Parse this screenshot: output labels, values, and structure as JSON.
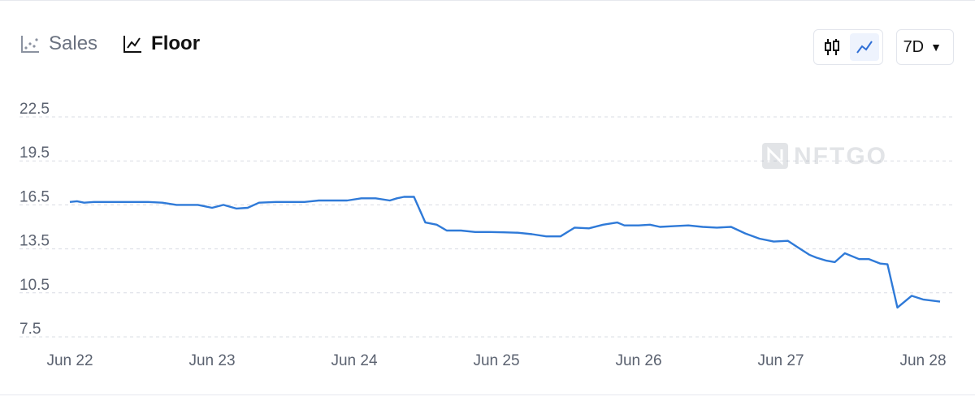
{
  "tabs": [
    {
      "label": "Sales",
      "icon": "scatter-icon",
      "active": false
    },
    {
      "label": "Floor",
      "icon": "line-chart-icon",
      "active": true
    }
  ],
  "controls": {
    "chart_type_options": [
      "candlestick-icon",
      "line-chart-icon"
    ],
    "active_chart_type": "line-chart-icon",
    "range_label": "7D"
  },
  "watermark": "NFTGO",
  "colors": {
    "line": "#2f7ad8",
    "grid": "#d9dce3",
    "accent_bg": "#eef3fd"
  },
  "chart_data": {
    "type": "line",
    "title": "",
    "xlabel": "",
    "ylabel": "",
    "ylim": [
      7.5,
      22.5
    ],
    "yticks": [
      22.5,
      19.5,
      16.5,
      13.5,
      10.5,
      7.5
    ],
    "xtick_labels": [
      "Jun 22",
      "Jun 23",
      "Jun 24",
      "Jun 25",
      "Jun 26",
      "Jun 27",
      "Jun 28"
    ],
    "xlim": [
      0,
      6.2
    ],
    "grid": true,
    "series": [
      {
        "x": [
          0.0,
          0.05,
          0.1,
          0.17,
          0.25,
          0.35,
          0.45,
          0.55,
          0.65,
          0.75,
          0.8,
          0.9,
          1.0,
          1.08,
          1.17,
          1.25,
          1.33,
          1.45,
          1.55,
          1.65,
          1.75,
          1.85,
          1.95,
          2.05,
          2.15,
          2.25,
          2.3,
          2.35,
          2.42,
          2.5,
          2.58,
          2.65,
          2.75,
          2.85,
          2.95,
          3.05,
          3.15,
          3.25,
          3.35,
          3.45,
          3.55,
          3.65,
          3.75,
          3.85,
          3.9,
          4.0,
          4.08,
          4.15,
          4.25,
          4.35,
          4.45,
          4.55,
          4.65,
          4.75,
          4.85,
          4.95,
          5.05,
          5.12,
          5.2,
          5.25,
          5.32,
          5.38,
          5.45,
          5.55,
          5.62,
          5.7,
          5.75,
          5.82,
          5.92,
          6.0,
          6.12
        ],
        "y": [
          16.7,
          16.75,
          16.65,
          16.7,
          16.7,
          16.7,
          16.7,
          16.7,
          16.65,
          16.5,
          16.5,
          16.5,
          16.3,
          16.5,
          16.25,
          16.3,
          16.65,
          16.7,
          16.7,
          16.7,
          16.8,
          16.8,
          16.8,
          16.95,
          16.95,
          16.8,
          16.95,
          17.05,
          17.05,
          15.3,
          15.15,
          14.75,
          14.75,
          14.65,
          14.65,
          14.63,
          14.6,
          14.5,
          14.35,
          14.35,
          14.95,
          14.9,
          15.15,
          15.3,
          15.1,
          15.1,
          15.15,
          15.0,
          15.05,
          15.1,
          15.0,
          14.95,
          15.0,
          14.55,
          14.2,
          14.0,
          14.05,
          13.6,
          13.1,
          12.9,
          12.7,
          12.6,
          13.2,
          12.8,
          12.8,
          12.5,
          12.45,
          9.5,
          10.3,
          10.05,
          9.9
        ]
      }
    ]
  }
}
